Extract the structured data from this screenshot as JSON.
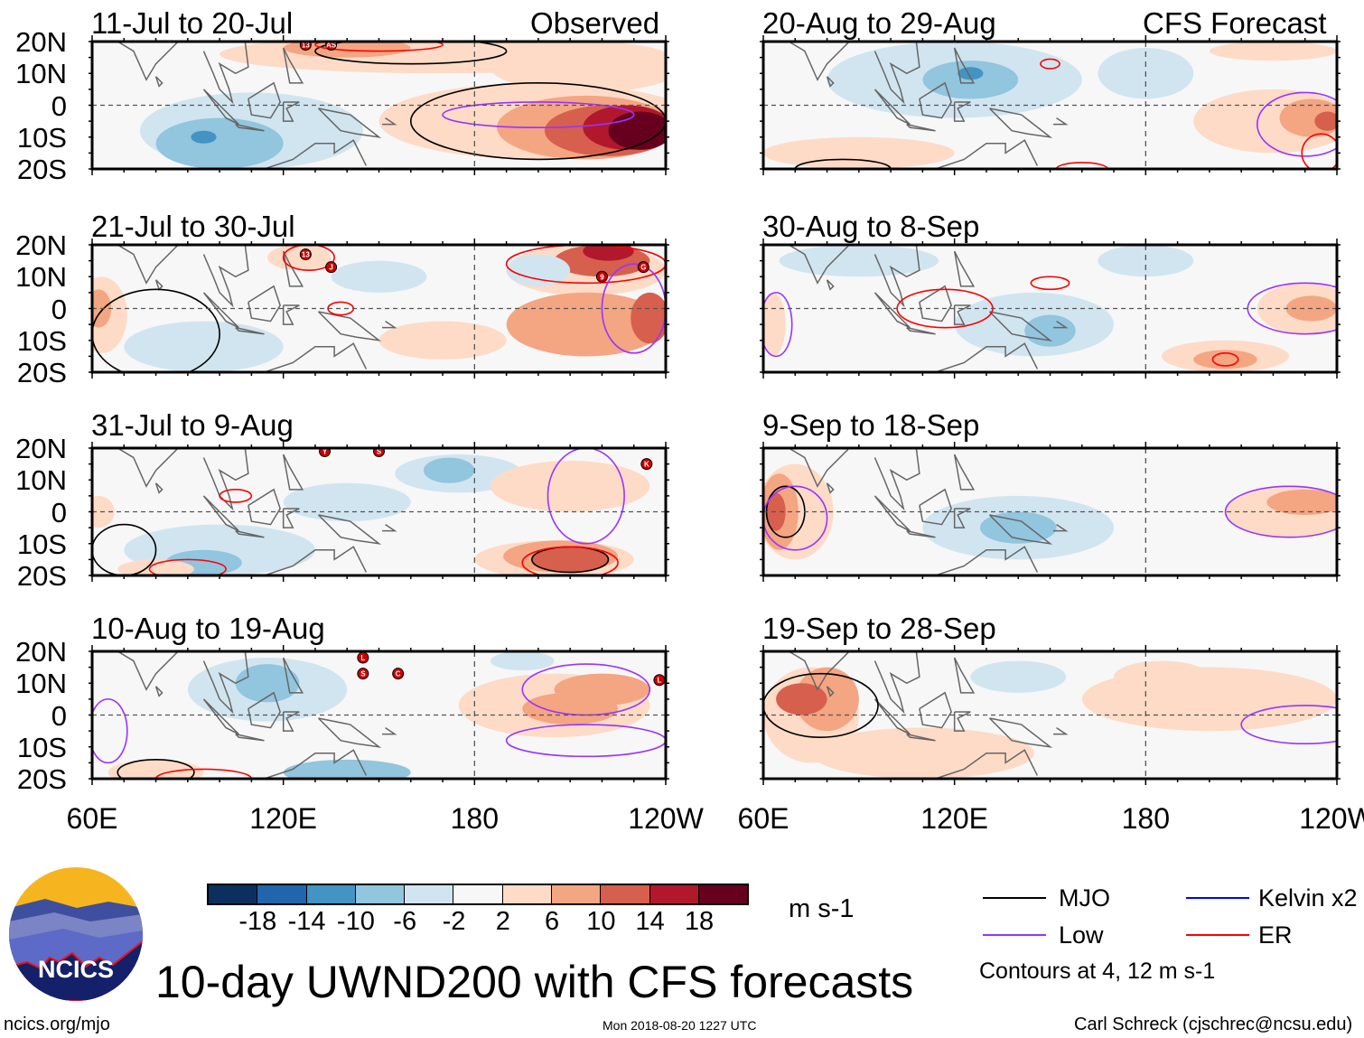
{
  "header": {
    "left_label": "Observed",
    "right_label": "CFS Forecast"
  },
  "panels": [
    {
      "title": "11-Jul to 20-Jul",
      "column": "observed",
      "storms": [
        {
          "label": "13",
          "lon": 127,
          "lat": 19
        },
        {
          "label": "AS",
          "lon": 135,
          "lat": 19
        }
      ]
    },
    {
      "title": "21-Jul to 30-Jul",
      "column": "observed",
      "storms": [
        {
          "label": "13",
          "lon": 127,
          "lat": 17
        },
        {
          "label": "J",
          "lon": 135,
          "lat": 13
        },
        {
          "label": "9",
          "lon": 220,
          "lat": 10
        },
        {
          "label": "G",
          "lon": 233,
          "lat": 13
        }
      ]
    },
    {
      "title": "31-Jul to 9-Aug",
      "column": "observed",
      "storms": [
        {
          "label": "Y",
          "lon": 133,
          "lat": 19
        },
        {
          "label": "S",
          "lon": 150,
          "lat": 19
        },
        {
          "label": "K",
          "lon": 234,
          "lat": 15
        }
      ]
    },
    {
      "title": "10-Aug to 19-Aug",
      "column": "observed",
      "storms": [
        {
          "label": "L",
          "lon": 145,
          "lat": 18
        },
        {
          "label": "S",
          "lon": 145,
          "lat": 13
        },
        {
          "label": "C",
          "lon": 156,
          "lat": 13
        },
        {
          "label": "L",
          "lon": 238,
          "lat": 11
        }
      ]
    },
    {
      "title": "20-Aug to 29-Aug",
      "column": "forecast",
      "storms": []
    },
    {
      "title": "30-Aug to 8-Sep",
      "column": "forecast",
      "storms": []
    },
    {
      "title": "9-Sep to 18-Sep",
      "column": "forecast",
      "storms": []
    },
    {
      "title": "19-Sep to 28-Sep",
      "column": "forecast",
      "storms": []
    }
  ],
  "axes": {
    "lat_labels": [
      "20N",
      "10N",
      "0",
      "10S",
      "20S"
    ],
    "lon_labels": [
      "60E",
      "120E",
      "180",
      "120W"
    ],
    "lat_range": [
      -20,
      20
    ],
    "lon_range": [
      60,
      240
    ]
  },
  "colorbar": {
    "colors": [
      "#0b3060",
      "#2166ac",
      "#4393c3",
      "#92c5de",
      "#d1e5f0",
      "#f7f7f7",
      "#fddbc7",
      "#f4a582",
      "#d6604d",
      "#b2182b",
      "#67001f"
    ],
    "tick_labels": [
      "-18",
      "-14",
      "-10",
      "-6",
      "-2",
      "2",
      "6",
      "10",
      "14",
      "18"
    ],
    "units": "m s-1"
  },
  "legend": {
    "items": [
      {
        "label": "MJO",
        "color": "#000000"
      },
      {
        "label": "Low",
        "color": "#9933ff"
      },
      {
        "label": "Kelvin x2",
        "color": "#0000ff"
      },
      {
        "label": "ER",
        "color": "#ff0000"
      }
    ],
    "note": "Contours at 4, 12 m s-1"
  },
  "footer": {
    "title": "10-day UWND200 with CFS forecasts",
    "site": "ncics.org/mjo",
    "timestamp": "Mon 2018-08-20 1227 UTC",
    "credit": "Carl Schreck (cjschrec@ncsu.edu)",
    "logo_text": "NCICS"
  }
}
